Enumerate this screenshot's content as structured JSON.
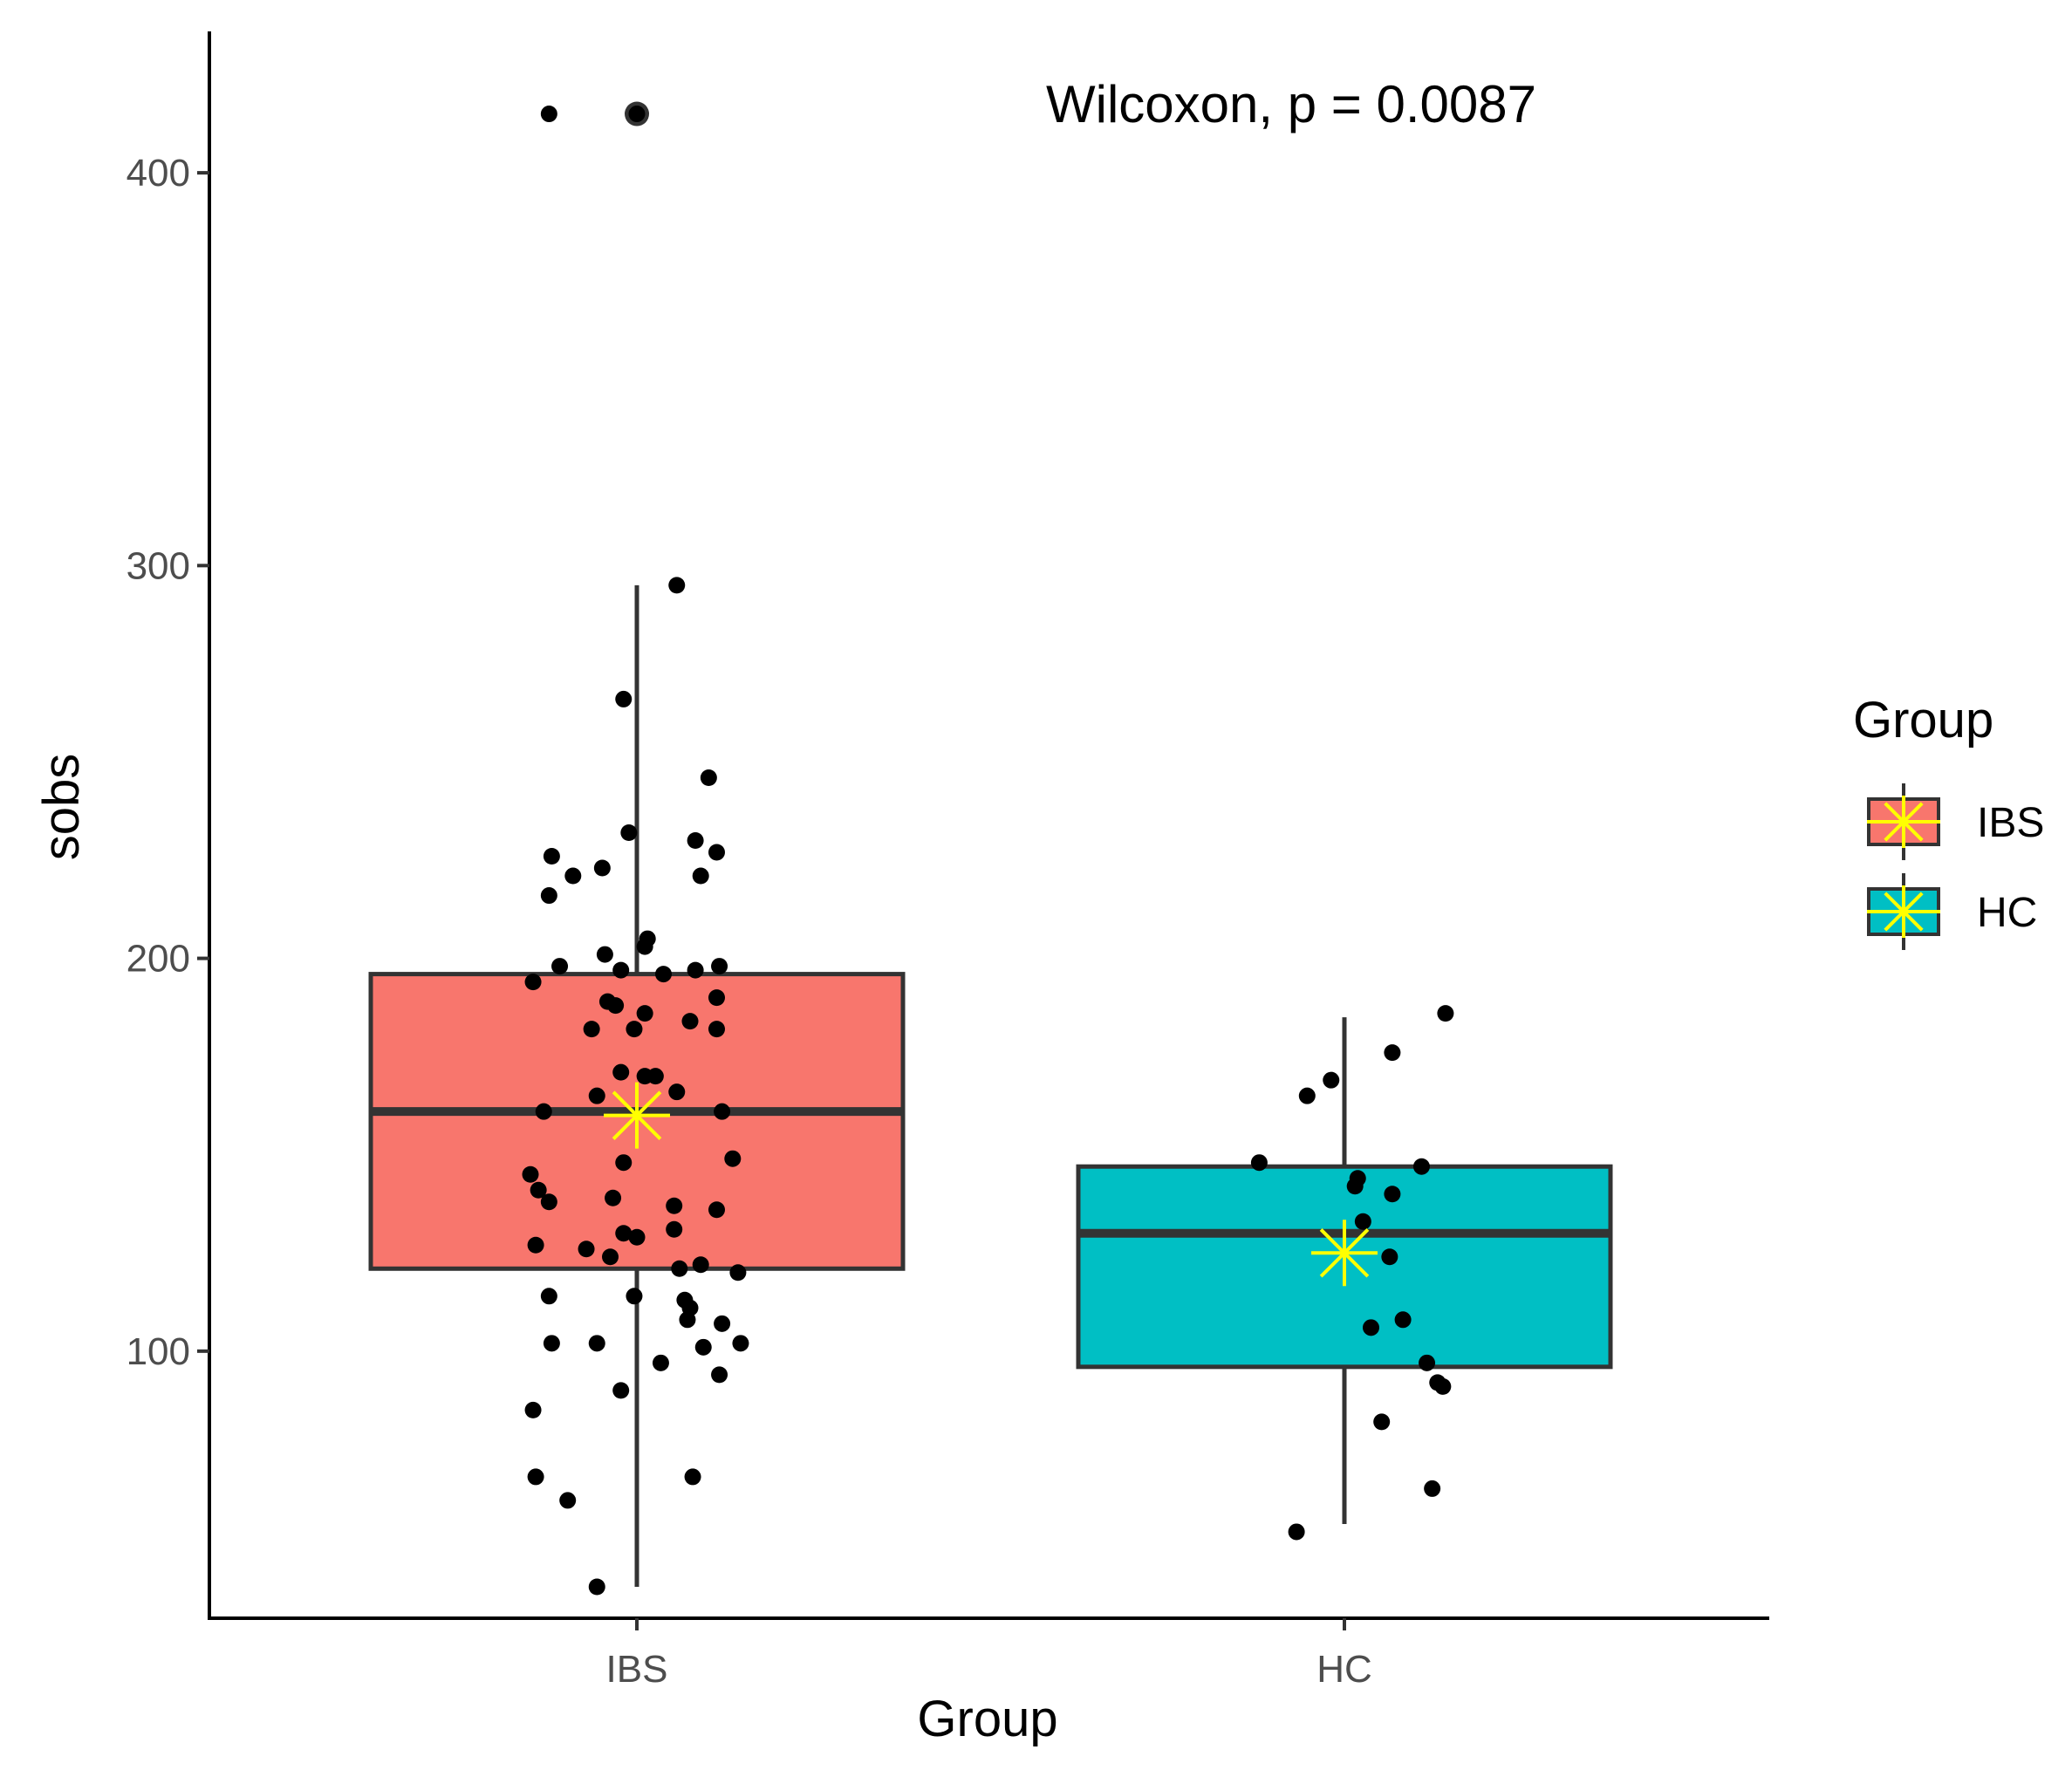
{
  "chart_data": {
    "type": "boxplot",
    "title": "",
    "xlabel": "Group",
    "ylabel": "sobs",
    "ylim": [
      32,
      436
    ],
    "yticks": [
      100,
      200,
      300,
      400
    ],
    "categories": [
      "IBS",
      "HC"
    ],
    "annotation": "Wilcoxon, p = 0.0087",
    "legend": {
      "title": "Group",
      "position": "right",
      "entries": [
        {
          "label": "IBS",
          "color": "#F8766D"
        },
        {
          "label": "HC",
          "color": "#00BFC4"
        }
      ]
    },
    "groups": [
      {
        "name": "IBS",
        "color": "#F8766D",
        "whisker_low": 40,
        "q1": 121,
        "median": 161,
        "q3": 196,
        "whisker_high": 295,
        "mean": 160,
        "outliers": [
          415
        ],
        "points": [
          {
            "dx": -0.33,
            "y": 415
          },
          {
            "dx": 0.0,
            "y": 415
          },
          {
            "dx": 0.15,
            "y": 295
          },
          {
            "dx": -0.05,
            "y": 266
          },
          {
            "dx": 0.27,
            "y": 246
          },
          {
            "dx": -0.03,
            "y": 232
          },
          {
            "dx": 0.22,
            "y": 230
          },
          {
            "dx": -0.32,
            "y": 226
          },
          {
            "dx": 0.3,
            "y": 227
          },
          {
            "dx": -0.24,
            "y": 221
          },
          {
            "dx": -0.13,
            "y": 223
          },
          {
            "dx": 0.24,
            "y": 221
          },
          {
            "dx": -0.33,
            "y": 216
          },
          {
            "dx": 0.04,
            "y": 205
          },
          {
            "dx": 0.03,
            "y": 203
          },
          {
            "dx": -0.12,
            "y": 201
          },
          {
            "dx": -0.29,
            "y": 198
          },
          {
            "dx": 0.22,
            "y": 197
          },
          {
            "dx": 0.31,
            "y": 198
          },
          {
            "dx": -0.06,
            "y": 197
          },
          {
            "dx": 0.1,
            "y": 196
          },
          {
            "dx": -0.39,
            "y": 194
          },
          {
            "dx": 0.3,
            "y": 190
          },
          {
            "dx": -0.11,
            "y": 189
          },
          {
            "dx": -0.08,
            "y": 188
          },
          {
            "dx": 0.03,
            "y": 186
          },
          {
            "dx": 0.2,
            "y": 184
          },
          {
            "dx": -0.17,
            "y": 182
          },
          {
            "dx": -0.01,
            "y": 182
          },
          {
            "dx": 0.3,
            "y": 182
          },
          {
            "dx": -0.06,
            "y": 171
          },
          {
            "dx": 0.03,
            "y": 170
          },
          {
            "dx": 0.07,
            "y": 170
          },
          {
            "dx": 0.15,
            "y": 166
          },
          {
            "dx": -0.15,
            "y": 165
          },
          {
            "dx": -0.35,
            "y": 161
          },
          {
            "dx": 0.32,
            "y": 161
          },
          {
            "dx": -0.05,
            "y": 148
          },
          {
            "dx": 0.36,
            "y": 149
          },
          {
            "dx": -0.4,
            "y": 145
          },
          {
            "dx": -0.37,
            "y": 141
          },
          {
            "dx": -0.09,
            "y": 139
          },
          {
            "dx": -0.33,
            "y": 138
          },
          {
            "dx": 0.14,
            "y": 137
          },
          {
            "dx": 0.3,
            "y": 136
          },
          {
            "dx": 0.14,
            "y": 131
          },
          {
            "dx": -0.05,
            "y": 130
          },
          {
            "dx": 0.0,
            "y": 129
          },
          {
            "dx": -0.38,
            "y": 127
          },
          {
            "dx": -0.19,
            "y": 126
          },
          {
            "dx": -0.1,
            "y": 124
          },
          {
            "dx": 0.24,
            "y": 122
          },
          {
            "dx": 0.16,
            "y": 121
          },
          {
            "dx": 0.38,
            "y": 120
          },
          {
            "dx": -0.33,
            "y": 114
          },
          {
            "dx": -0.01,
            "y": 114
          },
          {
            "dx": 0.18,
            "y": 113
          },
          {
            "dx": 0.2,
            "y": 111
          },
          {
            "dx": 0.19,
            "y": 108
          },
          {
            "dx": 0.32,
            "y": 107
          },
          {
            "dx": -0.32,
            "y": 102
          },
          {
            "dx": -0.15,
            "y": 102
          },
          {
            "dx": 0.39,
            "y": 102
          },
          {
            "dx": 0.25,
            "y": 101
          },
          {
            "dx": 0.09,
            "y": 97
          },
          {
            "dx": 0.31,
            "y": 94
          },
          {
            "dx": -0.06,
            "y": 90
          },
          {
            "dx": -0.39,
            "y": 85
          },
          {
            "dx": 0.21,
            "y": 68
          },
          {
            "dx": -0.38,
            "y": 68
          },
          {
            "dx": -0.26,
            "y": 62
          },
          {
            "dx": -0.15,
            "y": 40
          }
        ]
      },
      {
        "name": "HC",
        "color": "#00BFC4",
        "whisker_low": 56,
        "q1": 96,
        "median": 130,
        "q3": 147,
        "whisker_high": 185,
        "mean": 125,
        "outliers": [],
        "points": [
          {
            "dx": 0.38,
            "y": 186
          },
          {
            "dx": 0.18,
            "y": 176
          },
          {
            "dx": -0.05,
            "y": 169
          },
          {
            "dx": -0.14,
            "y": 165
          },
          {
            "dx": -0.32,
            "y": 148
          },
          {
            "dx": 0.29,
            "y": 147
          },
          {
            "dx": 0.05,
            "y": 144
          },
          {
            "dx": 0.04,
            "y": 142
          },
          {
            "dx": 0.18,
            "y": 140
          },
          {
            "dx": 0.07,
            "y": 133
          },
          {
            "dx": 0.17,
            "y": 124
          },
          {
            "dx": 0.22,
            "y": 108
          },
          {
            "dx": 0.1,
            "y": 106
          },
          {
            "dx": 0.31,
            "y": 97
          },
          {
            "dx": 0.35,
            "y": 92
          },
          {
            "dx": 0.37,
            "y": 91
          },
          {
            "dx": 0.14,
            "y": 82
          },
          {
            "dx": 0.33,
            "y": 65
          },
          {
            "dx": -0.18,
            "y": 54
          }
        ]
      }
    ]
  }
}
